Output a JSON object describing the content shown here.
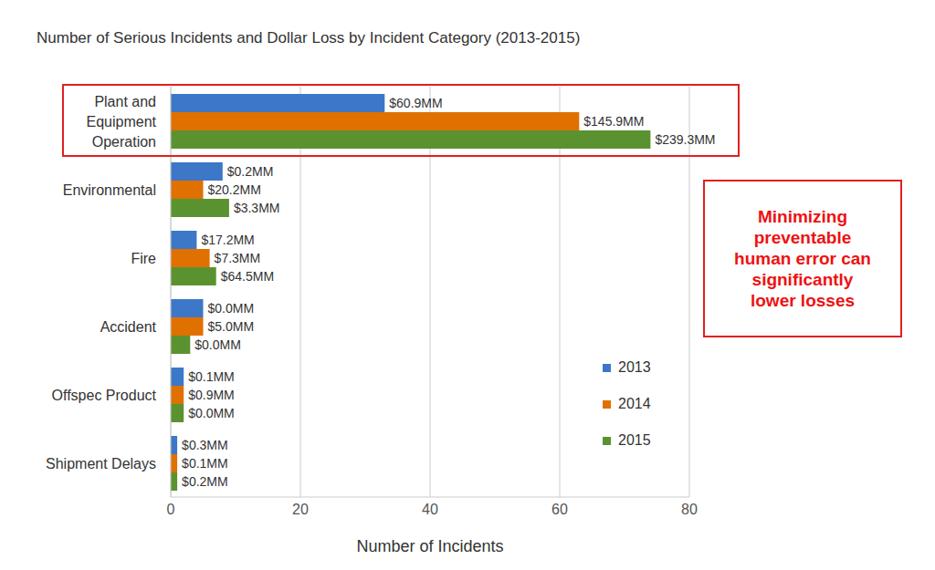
{
  "chart_data": {
    "type": "bar",
    "orientation": "horizontal",
    "title": "Number of Serious Incidents and Dollar Loss by Incident Category (2013-2015)",
    "x_label": "Number of Incidents",
    "categories": [
      "Plant and Equipment Operation",
      "Environmental",
      "Fire",
      "Accident",
      "Offspec Product",
      "Shipment Delays"
    ],
    "series": [
      {
        "name": "2013",
        "color": "#3d77c8",
        "values": [
          33,
          8,
          4,
          5,
          2,
          1
        ],
        "loss_labels": [
          "$60.9MM",
          "$0.2MM",
          "$17.2MM",
          "$0.0MM",
          "$0.1MM",
          "$0.3MM"
        ]
      },
      {
        "name": "2014",
        "color": "#e07000",
        "values": [
          63,
          5,
          6,
          5,
          2,
          1
        ],
        "loss_labels": [
          "$145.9MM",
          "$20.2MM",
          "$7.3MM",
          "$5.0MM",
          "$0.9MM",
          "$0.1MM"
        ]
      },
      {
        "name": "2015",
        "color": "#5b9230",
        "values": [
          74,
          9,
          7,
          3,
          2,
          1
        ],
        "loss_labels": [
          "$239.3MM",
          "$3.3MM",
          "$64.5MM",
          "$0.0MM",
          "$0.0MM",
          "$0.2MM"
        ]
      }
    ],
    "xlim": [
      0,
      80
    ],
    "xticks": [
      0,
      20,
      40,
      60,
      80
    ],
    "grid": true,
    "legend": "right",
    "annotations": [
      "Minimizing preventable human error can significantly lower losses"
    ]
  }
}
